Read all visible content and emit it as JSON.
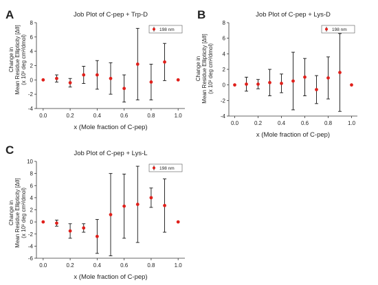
{
  "panels": [
    {
      "letter": "A",
      "ylabel_lines": [
        "Change in",
        "Mean Residue Ellipticity [Δθ]",
        "(x 10³ deg cm²/dmol)"
      ]
    },
    {
      "letter": "B",
      "ylabel_lines": [
        "Change in",
        "Mean Residue Ellipticity [Δθ]",
        "(x 10³ deg cm²/dmol)"
      ]
    },
    {
      "letter": "C",
      "ylabel_lines": [
        "Change in",
        "Mean Residue Ellipticity [Δθ]",
        "(x 10³ deg cm²/dmol)"
      ]
    }
  ],
  "colors": {
    "point": "#e0201b",
    "errorbar": "#111111",
    "axis": "#333333"
  },
  "chart_data": [
    {
      "type": "scatter",
      "title": "Job Plot of C-pep + Trp-D",
      "xlabel": "x (Mole fraction of C-pep)",
      "ylabel": "Change in Mean Residue Ellipticity [Δθ] (x 10³ deg cm²/dmol)",
      "xlim": [
        -0.05,
        1.05
      ],
      "ylim": [
        -4,
        8
      ],
      "xticks": [
        0.0,
        0.2,
        0.4,
        0.6,
        0.8,
        1.0
      ],
      "xtick_labels": [
        "0.0",
        "0.2",
        "0.4",
        "0.6",
        "0.8",
        "1.0"
      ],
      "yticks": [
        -4,
        -2,
        0,
        2,
        4,
        6,
        8
      ],
      "ytick_labels": [
        "-4",
        "-2",
        "0",
        "2",
        "4",
        "6",
        "8"
      ],
      "legend": "top-right",
      "series": [
        {
          "name": "198 nm",
          "x": [
            0.0,
            0.1,
            0.2,
            0.3,
            0.4,
            0.5,
            0.6,
            0.7,
            0.8,
            0.9,
            1.0
          ],
          "y": [
            0.0,
            0.2,
            -0.4,
            0.7,
            0.7,
            0.2,
            -1.2,
            2.2,
            -0.3,
            2.5,
            0.0
          ],
          "err": [
            0,
            0.5,
            0.6,
            1.2,
            2.0,
            2.2,
            1.9,
            5.0,
            2.5,
            2.6,
            0
          ]
        }
      ]
    },
    {
      "type": "scatter",
      "title": "Job Plot of C-pep + Lys-D",
      "xlabel": "x (Mole fraction of C-pep)",
      "ylabel": "Change in Mean Residue Ellipticity [Δθ] (x 10³ deg cm²/dmol)",
      "xlim": [
        -0.05,
        1.05
      ],
      "ylim": [
        -4,
        8
      ],
      "xticks": [
        0.0,
        0.2,
        0.4,
        0.6,
        0.8,
        1.0
      ],
      "xtick_labels": [
        "0.0",
        "0.2",
        "0.4",
        "0.6",
        "0.8",
        "1.0"
      ],
      "yticks": [
        -4,
        -2,
        0,
        2,
        4,
        6,
        8
      ],
      "ytick_labels": [
        "-4",
        "-2",
        "0",
        "2",
        "4",
        "6",
        "8"
      ],
      "legend": "top-right",
      "series": [
        {
          "name": "198 nm",
          "x": [
            0.0,
            0.1,
            0.2,
            0.3,
            0.4,
            0.5,
            0.6,
            0.7,
            0.8,
            0.9,
            1.0
          ],
          "y": [
            0.0,
            0.1,
            0.1,
            0.3,
            0.2,
            0.5,
            1.0,
            -0.6,
            0.9,
            1.6,
            0.0
          ],
          "err": [
            0,
            0.9,
            0.6,
            1.7,
            1.2,
            3.7,
            2.4,
            1.8,
            2.7,
            5.0,
            0
          ]
        }
      ]
    },
    {
      "type": "scatter",
      "title": "Job Plot of C-pep + Lys-L",
      "xlabel": "x (Mole fraction of C-pep)",
      "ylabel": "Change in Mean Residue Ellipticity [Δθ] (x 10³ deg cm²/dmol)",
      "xlim": [
        -0.05,
        1.05
      ],
      "ylim": [
        -6,
        10
      ],
      "xticks": [
        0.0,
        0.2,
        0.4,
        0.6,
        0.8,
        1.0
      ],
      "xtick_labels": [
        "0.0",
        "0.2",
        "0.4",
        "0.6",
        "0.8",
        "1.0"
      ],
      "yticks": [
        -6,
        -4,
        -2,
        0,
        2,
        4,
        6,
        8,
        10
      ],
      "ytick_labels": [
        "-6",
        "-4",
        "-2",
        "0",
        "2",
        "4",
        "6",
        "8",
        "10"
      ],
      "legend": "top-right",
      "series": [
        {
          "name": "198 nm",
          "x": [
            0.0,
            0.1,
            0.2,
            0.3,
            0.4,
            0.5,
            0.6,
            0.7,
            0.8,
            0.9,
            1.0
          ],
          "y": [
            0.0,
            -0.2,
            -1.5,
            -1.0,
            -2.4,
            1.2,
            2.6,
            2.9,
            4.0,
            2.7,
            0.0
          ],
          "err": [
            0,
            0.5,
            1.2,
            0.7,
            2.8,
            6.8,
            5.3,
            6.3,
            1.6,
            4.4,
            0
          ]
        }
      ]
    }
  ]
}
